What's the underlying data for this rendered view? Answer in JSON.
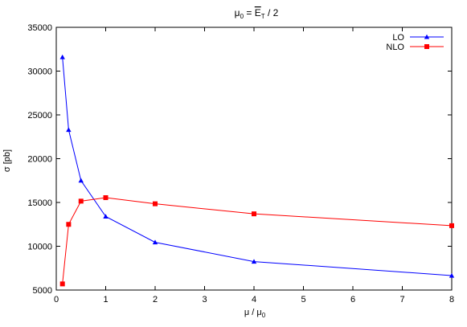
{
  "chart_data": {
    "type": "line",
    "title": {
      "prefix": "μ",
      "prefix_sub": "0",
      "equals": "=",
      "var": "E",
      "var_sub": "T",
      "suffix": "/ 2"
    },
    "xlabel": {
      "main": "μ / μ",
      "sub": "0"
    },
    "ylabel": "σ [pb]",
    "xlim": [
      0,
      8
    ],
    "ylim": [
      5000,
      35000
    ],
    "x_ticks": [
      0,
      1,
      2,
      3,
      4,
      5,
      6,
      7,
      8
    ],
    "y_ticks": [
      5000,
      10000,
      15000,
      20000,
      25000,
      30000,
      35000
    ],
    "grid": false,
    "legend_position": "top-right",
    "series": [
      {
        "name": "LO",
        "color": "#0000ff",
        "marker": "triangle",
        "x": [
          0.125,
          0.25,
          0.5,
          1,
          2,
          4,
          8
        ],
        "y": [
          31600,
          23300,
          17500,
          13400,
          10450,
          8250,
          6650
        ]
      },
      {
        "name": "NLO",
        "color": "#ff0000",
        "marker": "square",
        "x": [
          0.125,
          0.25,
          0.5,
          1,
          2,
          4,
          8
        ],
        "y": [
          5700,
          12500,
          15150,
          15550,
          14850,
          13700,
          12350
        ]
      }
    ]
  }
}
